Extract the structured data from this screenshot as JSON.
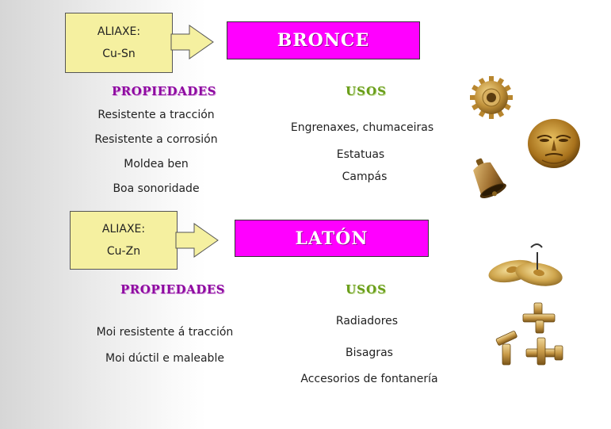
{
  "bronze": {
    "alloy_label": "ALIAXE:",
    "alloy_formula": "Cu-Sn",
    "name": "BRONCE",
    "properties_heading": "PROPIEDADES",
    "uses_heading": "USOS",
    "properties": [
      "Resistente a tracción",
      "Resistente a corrosión",
      "Moldea ben",
      "Boa sonoridade"
    ],
    "uses": [
      "Engrenaxes, chumaceiras",
      "Estatuas",
      "Campás"
    ]
  },
  "brass": {
    "alloy_label": "ALIAXE:",
    "alloy_formula": "Cu-Zn",
    "name": "LATÓN",
    "properties_heading": "PROPIEDADES",
    "uses_heading": "USOS",
    "properties": [
      "Moi resistente á tracción",
      "Moi dúctil e maleable"
    ],
    "uses": [
      "Radiadores",
      "Bisagras",
      "Accesorios de fontanería"
    ]
  },
  "images": [
    "gear-image",
    "gold-mask-image",
    "bell-image",
    "cymbals-image",
    "pipe-fittings-image"
  ],
  "colors": {
    "name_box": "#ff00ff",
    "properties_heading": "#8e0aa0",
    "uses_heading": "#6a9e1a",
    "alloy_box": "#f5f0a0"
  }
}
